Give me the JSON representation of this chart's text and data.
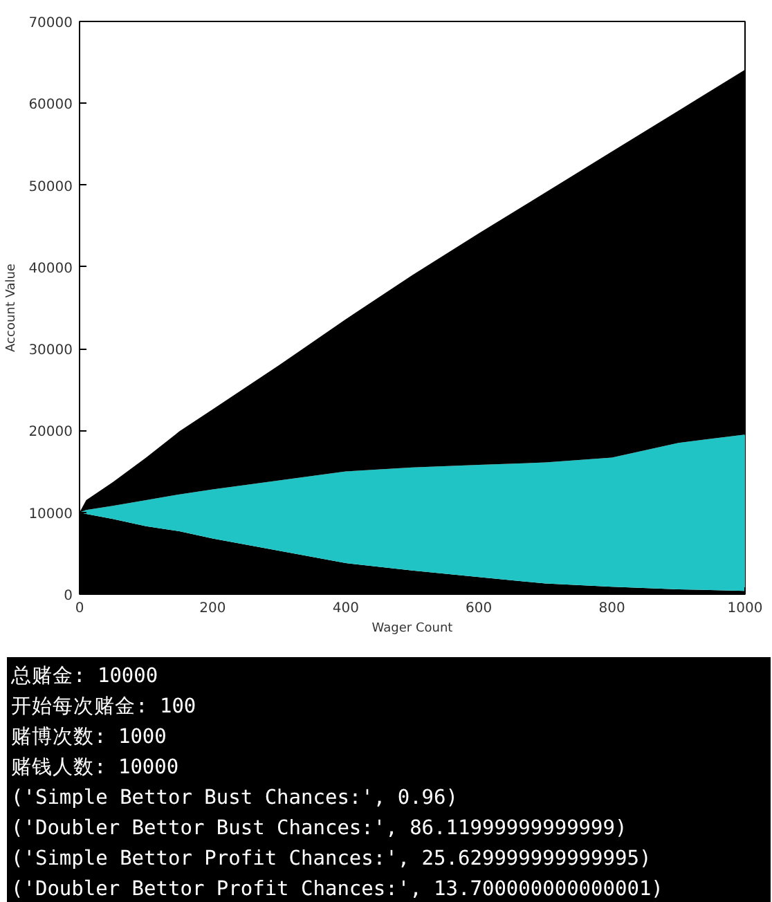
{
  "chart_data": {
    "type": "area",
    "stacked": true,
    "x": [
      0,
      10,
      50,
      100,
      150,
      200,
      300,
      400,
      500,
      600,
      700,
      800,
      900,
      1000
    ],
    "series": [
      {
        "color": "#000000",
        "values": [
          10000,
          9800,
          9200,
          8300,
          7700,
          6800,
          5300,
          3800,
          2900,
          2100,
          1300,
          900,
          600,
          400
        ]
      },
      {
        "color": "#20c4c4",
        "values": [
          0,
          500,
          1600,
          3200,
          4500,
          6000,
          8600,
          11200,
          12600,
          13700,
          14800,
          15800,
          17900,
          19100
        ]
      },
      {
        "color": "#000000",
        "values": [
          0,
          1200,
          2900,
          5200,
          7700,
          9800,
          14100,
          18600,
          23500,
          28300,
          33000,
          37400,
          40600,
          44600
        ]
      }
    ],
    "xlim": [
      0,
      1000
    ],
    "ylim": [
      0,
      70000
    ],
    "xticks": [
      0,
      200,
      400,
      600,
      800,
      1000
    ],
    "yticks": [
      0,
      10000,
      20000,
      30000,
      40000,
      50000,
      60000,
      70000
    ],
    "xlabel": "Wager Count",
    "ylabel": "Account Value",
    "annotations": [
      "总赌金: 10000",
      "开始每次赌金: 100",
      "赌博次数: 1000",
      "赌钱人数: 10000",
      "('Simple Bettor Bust Chances:', 0.96)",
      "('Doubler Bettor Bust Chances:', 86.11999999999999)",
      "('Simple Bettor Profit Chances:', 25.629999999999995)",
      "('Doubler Bettor Profit Chances:', 13.700000000000001)"
    ]
  }
}
